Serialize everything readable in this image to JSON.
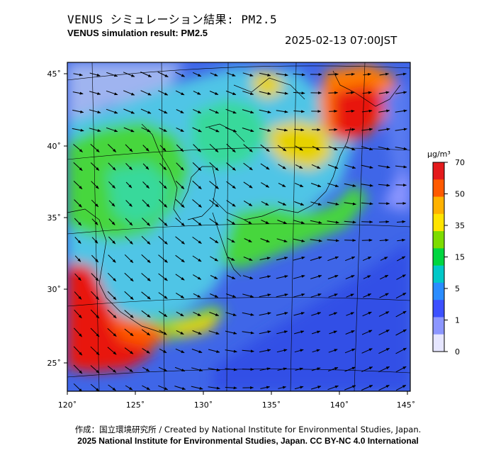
{
  "header": {
    "title_ja": "VENUS シミュレーション結果: PM2.5",
    "title_en": "VENUS simulation result: PM2.5",
    "timestamp": "2025-02-13 07:00JST"
  },
  "map": {
    "lon_ticks": [
      "120˚",
      "125˚",
      "130˚",
      "135˚",
      "140˚",
      "145˚"
    ],
    "lat_ticks": [
      "45˚",
      "40˚",
      "35˚",
      "30˚",
      "25˚"
    ],
    "lon_range": [
      120,
      145
    ],
    "lat_range": [
      23,
      46
    ]
  },
  "colorbar": {
    "unit": "μg/m³",
    "labels": [
      "70",
      "50",
      "35",
      "15",
      "5",
      "1",
      "0"
    ],
    "colors": [
      "#e41a1c",
      "#ff5a00",
      "#ffb200",
      "#ffe400",
      "#7ddc00",
      "#00d640",
      "#00c8c8",
      "#2a8cff",
      "#3c50ff",
      "#8c96ff",
      "#e6e6ff"
    ]
  },
  "palette": {
    "sea": "#3f66e8",
    "low": "#4fc5e6",
    "mid": "#37d99b",
    "green": "#46d63c",
    "yellow": "#e6d200",
    "orange": "#ff7a00",
    "red": "#e8120c"
  },
  "footer": {
    "line1": "作成：国立環境研究所 / Created by National Institute for Environmental Studies, Japan.",
    "line2": "2025 National Institute for Environmental Studies, Japan. CC BY-NC 4.0 International"
  }
}
